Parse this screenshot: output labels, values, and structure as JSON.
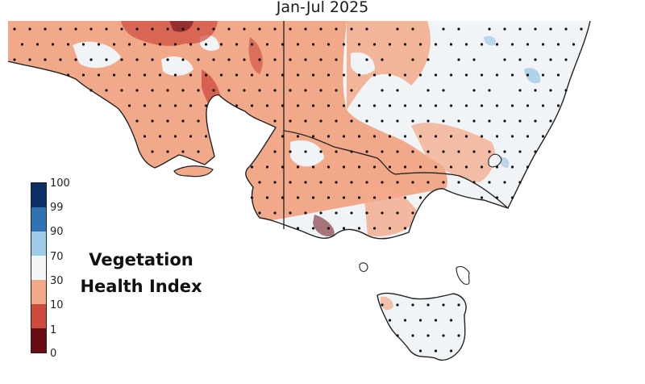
{
  "title": "Jan-Jul 2025",
  "legend": {
    "title_line1": "Vegetation",
    "title_line2": "Health Index",
    "ticks": [
      "100",
      "99",
      "90",
      "70",
      "30",
      "10",
      "1",
      "0"
    ],
    "colors": [
      "#0b2f63",
      "#2f73b5",
      "#9fcce6",
      "#f2f5f7",
      "#f2a98a",
      "#cd4a3c",
      "#6b0b16"
    ]
  },
  "colors": {
    "land_background": "#f1f4f6",
    "stipple": "#111111",
    "coastline": "#222222"
  }
}
